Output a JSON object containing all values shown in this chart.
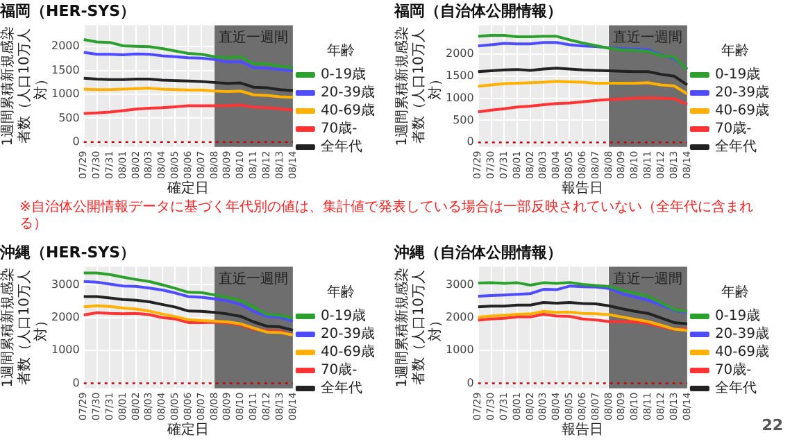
{
  "chart_data": [
    {
      "type": "line",
      "title": "福岡（HER-SYS）",
      "xlabel": "確定日",
      "ylabel": "1週間累積新規感染者数（人口10万人対）",
      "legend_title": "年齢",
      "legend": "right",
      "grid": true,
      "marker": "none",
      "line_style": "solid",
      "categories": [
        "07/29",
        "07/30",
        "07/31",
        "08/01",
        "08/02",
        "08/03",
        "08/04",
        "08/05",
        "08/06",
        "08/07",
        "08/08",
        "08/09",
        "08/10",
        "08/11",
        "08/12",
        "08/13",
        "08/14"
      ],
      "ylim": [
        -100,
        2450
      ],
      "yticks": [
        0,
        500,
        1000,
        1500,
        2000
      ],
      "bands": [
        {
          "axis": "x",
          "from": "08/08",
          "to": "08/14",
          "label": "直近一週間",
          "color": "#6e6e6e"
        }
      ],
      "ref_lines": [
        {
          "axis": "y",
          "value": 0,
          "color": "#cc0000",
          "line_style": "dotted"
        }
      ],
      "series": [
        {
          "name": "0-19歳",
          "color": "#2ca02c",
          "values": [
            2150,
            2100,
            2090,
            2020,
            2010,
            2000,
            1960,
            1910,
            1860,
            1840,
            1790,
            1770,
            1790,
            1640,
            1640,
            1590,
            1560
          ]
        },
        {
          "name": "20-39歳",
          "color": "#4d4dff",
          "values": [
            1880,
            1840,
            1840,
            1830,
            1850,
            1840,
            1810,
            1790,
            1770,
            1760,
            1730,
            1680,
            1690,
            1560,
            1550,
            1520,
            1490
          ]
        },
        {
          "name": "40-69歳",
          "color": "#ffb000",
          "values": [
            1110,
            1100,
            1100,
            1110,
            1120,
            1130,
            1110,
            1100,
            1090,
            1090,
            1070,
            1060,
            1070,
            990,
            980,
            950,
            940
          ]
        },
        {
          "name": "70歳-",
          "color": "#ff3333",
          "values": [
            600,
            610,
            630,
            660,
            690,
            710,
            720,
            740,
            760,
            760,
            760,
            760,
            780,
            730,
            720,
            700,
            670
          ]
        },
        {
          "name": "全年代",
          "color": "#222222",
          "values": [
            1340,
            1320,
            1310,
            1310,
            1320,
            1320,
            1300,
            1290,
            1280,
            1270,
            1250,
            1230,
            1240,
            1150,
            1140,
            1100,
            1080
          ]
        }
      ]
    },
    {
      "type": "line",
      "title": "福岡（自治体公開情報）",
      "xlabel": "報告日",
      "ylabel": "1週間累積新規感染者数（人口10万人対）",
      "legend_title": "年齢",
      "legend": "right",
      "grid": true,
      "marker": "none",
      "line_style": "solid",
      "categories": [
        "07/29",
        "07/30",
        "07/31",
        "08/01",
        "08/02",
        "08/03",
        "08/04",
        "08/05",
        "08/06",
        "08/07",
        "08/08",
        "08/09",
        "08/10",
        "08/11",
        "08/12",
        "08/13",
        "08/14"
      ],
      "ylim": [
        -100,
        2650
      ],
      "yticks": [
        0,
        500,
        1000,
        1500,
        2000
      ],
      "bands": [
        {
          "axis": "x",
          "from": "08/08",
          "to": "08/14",
          "label": "直近一週間",
          "color": "#6e6e6e"
        }
      ],
      "ref_lines": [
        {
          "axis": "y",
          "value": 0,
          "color": "#cc0000",
          "line_style": "dotted"
        }
      ],
      "annotations": [
        "※自治体公開情報データに基づく年代別の値は、集計値で発表している場合は一部反映されていない（全年代に含まれる）"
      ],
      "series": [
        {
          "name": "0-19歳",
          "color": "#2ca02c",
          "values": [
            2400,
            2420,
            2420,
            2390,
            2390,
            2400,
            2400,
            2320,
            2250,
            2190,
            2130,
            2090,
            2080,
            2060,
            1960,
            1930,
            1650
          ]
        },
        {
          "name": "20-39歳",
          "color": "#4d4dff",
          "values": [
            2180,
            2210,
            2240,
            2230,
            2230,
            2260,
            2260,
            2210,
            2180,
            2170,
            2140,
            2120,
            2110,
            2100,
            1970,
            1900,
            1660
          ]
        },
        {
          "name": "40-69歳",
          "color": "#ffb000",
          "values": [
            1270,
            1300,
            1330,
            1340,
            1350,
            1360,
            1380,
            1370,
            1360,
            1340,
            1340,
            1340,
            1340,
            1350,
            1300,
            1280,
            1100
          ]
        },
        {
          "name": "70歳-",
          "color": "#ff3333",
          "values": [
            690,
            730,
            760,
            800,
            820,
            850,
            880,
            890,
            920,
            950,
            970,
            980,
            1000,
            1010,
            1000,
            990,
            860
          ]
        },
        {
          "name": "全年代",
          "color": "#222222",
          "values": [
            1600,
            1620,
            1640,
            1650,
            1630,
            1660,
            1680,
            1660,
            1640,
            1630,
            1620,
            1610,
            1600,
            1600,
            1540,
            1500,
            1300
          ]
        }
      ]
    },
    {
      "type": "line",
      "title": "沖縄（HER-SYS）",
      "xlabel": "確定日",
      "ylabel": "1週間累積新規感染者数（人口10万人対）",
      "legend_title": "年齢",
      "legend": "right",
      "grid": true,
      "marker": "none",
      "line_style": "solid",
      "categories": [
        "07/29",
        "07/30",
        "07/31",
        "08/01",
        "08/02",
        "08/03",
        "08/04",
        "08/05",
        "08/06",
        "08/07",
        "08/08",
        "08/09",
        "08/10",
        "08/11",
        "08/12",
        "08/13",
        "08/14"
      ],
      "ylim": [
        -150,
        3550
      ],
      "yticks": [
        0,
        1000,
        2000,
        3000
      ],
      "bands": [
        {
          "axis": "x",
          "from": "08/08",
          "to": "08/14",
          "label": "直近一週間",
          "color": "#6e6e6e"
        }
      ],
      "ref_lines": [
        {
          "axis": "y",
          "value": 0,
          "color": "#cc0000",
          "line_style": "dotted"
        }
      ],
      "series": [
        {
          "name": "0-19歳",
          "color": "#2ca02c",
          "values": [
            3360,
            3360,
            3310,
            3230,
            3160,
            3100,
            3000,
            2890,
            2770,
            2760,
            2690,
            2620,
            2520,
            2320,
            2100,
            2070,
            1980
          ]
        },
        {
          "name": "20-39歳",
          "color": "#4d4dff",
          "values": [
            3100,
            3080,
            3020,
            2960,
            2950,
            2900,
            2840,
            2750,
            2640,
            2620,
            2570,
            2510,
            2400,
            2190,
            2040,
            2010,
            1890
          ]
        },
        {
          "name": "40-69歳",
          "color": "#ffb000",
          "values": [
            2330,
            2360,
            2340,
            2290,
            2260,
            2200,
            2110,
            2030,
            1940,
            1910,
            1890,
            1870,
            1810,
            1680,
            1560,
            1550,
            1470
          ]
        },
        {
          "name": "70歳-",
          "color": "#ff3333",
          "values": [
            2080,
            2150,
            2130,
            2120,
            2130,
            2090,
            2000,
            1960,
            1850,
            1850,
            1860,
            1840,
            1780,
            1650,
            1600,
            1590,
            1460
          ]
        },
        {
          "name": "全年代",
          "color": "#222222",
          "values": [
            2640,
            2640,
            2600,
            2550,
            2530,
            2480,
            2400,
            2320,
            2200,
            2190,
            2160,
            2110,
            2040,
            1870,
            1740,
            1720,
            1620
          ]
        }
      ]
    },
    {
      "type": "line",
      "title": "沖縄（自治体公開情報）",
      "xlabel": "報告日",
      "ylabel": "1週間累積新規感染者数（人口10万人対）",
      "legend_title": "年齢",
      "legend": "right",
      "grid": true,
      "marker": "none",
      "line_style": "solid",
      "categories": [
        "07/29",
        "07/30",
        "07/31",
        "08/01",
        "08/02",
        "08/03",
        "08/04",
        "08/05",
        "08/06",
        "08/07",
        "08/08",
        "08/09",
        "08/10",
        "08/11",
        "08/12",
        "08/13",
        "08/14"
      ],
      "ylim": [
        -150,
        3550
      ],
      "yticks": [
        0,
        1000,
        2000,
        3000
      ],
      "bands": [
        {
          "axis": "x",
          "from": "08/08",
          "to": "08/14",
          "label": "直近一週間",
          "color": "#6e6e6e"
        }
      ],
      "ref_lines": [
        {
          "axis": "y",
          "value": 0,
          "color": "#cc0000",
          "line_style": "dotted"
        }
      ],
      "annotations": [
        "22"
      ],
      "series": [
        {
          "name": "0-19歳",
          "color": "#2ca02c",
          "values": [
            3050,
            3060,
            3040,
            3060,
            2990,
            3060,
            3040,
            3070,
            3010,
            2980,
            2950,
            2840,
            2740,
            2650,
            2450,
            2250,
            2180
          ]
        },
        {
          "name": "20-39歳",
          "color": "#4d4dff",
          "values": [
            2650,
            2670,
            2690,
            2710,
            2730,
            2860,
            2850,
            2960,
            2940,
            2930,
            2890,
            2730,
            2630,
            2530,
            2380,
            2230,
            2150
          ]
        },
        {
          "name": "40-69歳",
          "color": "#ffb000",
          "values": [
            2010,
            2050,
            2070,
            2100,
            2110,
            2190,
            2160,
            2170,
            2130,
            2120,
            2090,
            2020,
            1950,
            1880,
            1770,
            1650,
            1610
          ]
        },
        {
          "name": "70歳-",
          "color": "#ff3333",
          "values": [
            1920,
            1960,
            1980,
            2020,
            2020,
            2100,
            2050,
            2040,
            1960,
            1930,
            1880,
            1880,
            1870,
            1820,
            1730,
            1640,
            1660
          ]
        },
        {
          "name": "全年代",
          "color": "#222222",
          "values": [
            2330,
            2350,
            2350,
            2380,
            2380,
            2460,
            2440,
            2460,
            2430,
            2420,
            2360,
            2270,
            2190,
            2130,
            1990,
            1850,
            1810
          ]
        }
      ]
    }
  ]
}
